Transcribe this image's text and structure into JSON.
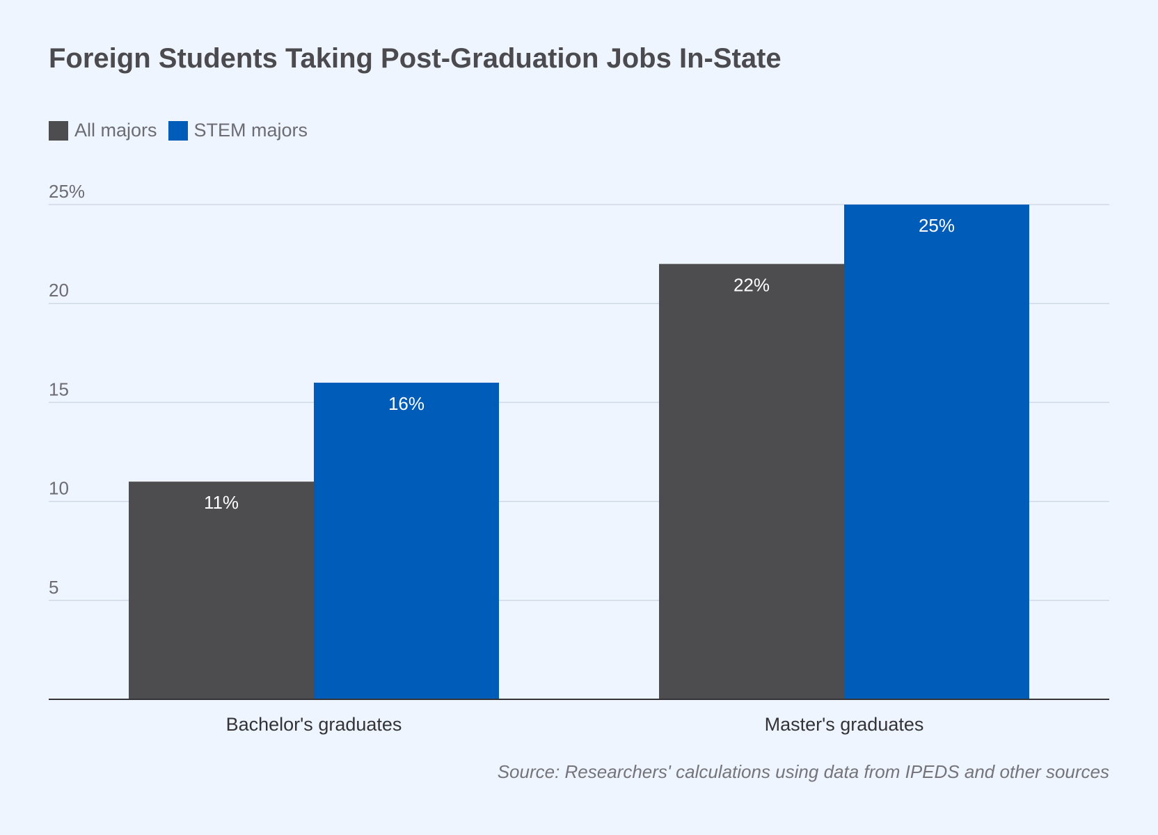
{
  "chart_data": {
    "type": "bar",
    "title": "Foreign Students Taking Post-Graduation Jobs In-State",
    "categories": [
      "Bachelor's graduates",
      "Master's graduates"
    ],
    "series": [
      {
        "name": "All majors",
        "color": "#4d4d50",
        "values": [
          11,
          22
        ],
        "labels": [
          "11%",
          "22%"
        ]
      },
      {
        "name": "STEM majors",
        "color": "#005cb9",
        "values": [
          16,
          25
        ],
        "labels": [
          "16%",
          "25%"
        ]
      }
    ],
    "ylim": [
      0,
      25
    ],
    "yticks": [
      5,
      10,
      15,
      20,
      25
    ],
    "ytick_labels": [
      "5",
      "10",
      "15",
      "20",
      "25%"
    ],
    "grid": true,
    "legend_position": "top-left",
    "source": "Source: Researchers' calculations using data from IPEDS and other sources"
  }
}
